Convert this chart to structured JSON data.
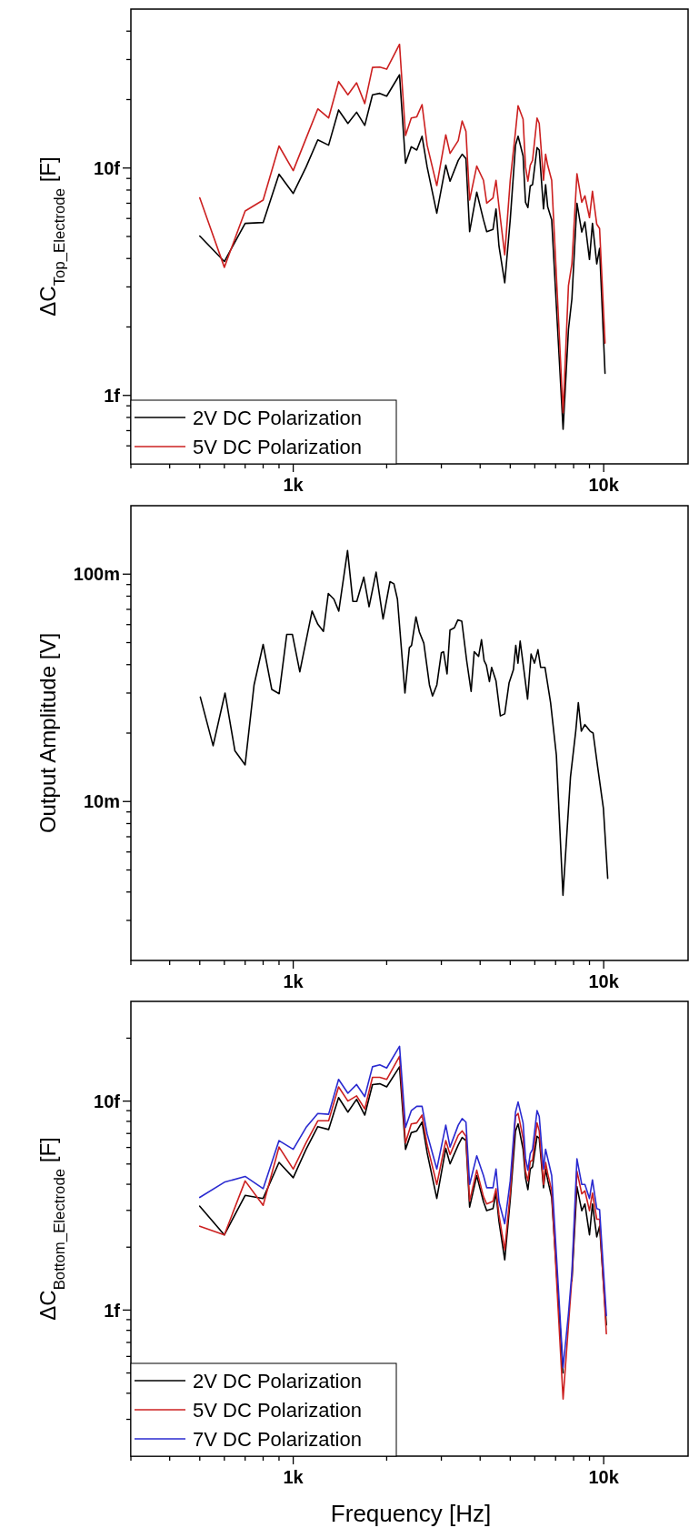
{
  "chart_data": [
    {
      "type": "line",
      "ylabel": "ΔC$_{Top_Electrode}$ [F]",
      "log": "xy",
      "legend": "bottom left",
      "xlim": [
        300,
        18700
      ],
      "ylim": [
        0.5,
        50
      ],
      "xticks": [
        {
          "value": 300,
          "label": null
        },
        {
          "value": 400,
          "label": null
        },
        {
          "value": 500,
          "label": null
        },
        {
          "value": 600,
          "label": null
        },
        {
          "value": 700,
          "label": null
        },
        {
          "value": 800,
          "label": null
        },
        {
          "value": 900,
          "label": null
        },
        {
          "value": 1000,
          "label": "1k"
        },
        {
          "value": 2000,
          "label": null
        },
        {
          "value": 3000,
          "label": null
        },
        {
          "value": 4000,
          "label": null
        },
        {
          "value": 5000,
          "label": null
        },
        {
          "value": 6000,
          "label": null
        },
        {
          "value": 7000,
          "label": null
        },
        {
          "value": 8000,
          "label": null
        },
        {
          "value": 9000,
          "label": null
        },
        {
          "value": 10000,
          "label": "10k"
        }
      ],
      "yticks": [
        {
          "value": 0.6,
          "label": null
        },
        {
          "value": 0.7,
          "label": null
        },
        {
          "value": 0.8,
          "label": null
        },
        {
          "value": 0.9,
          "label": null
        },
        {
          "value": 1,
          "label": "1f"
        },
        {
          "value": 2,
          "label": null
        },
        {
          "value": 3,
          "label": null
        },
        {
          "value": 4,
          "label": null
        },
        {
          "value": 5,
          "label": null
        },
        {
          "value": 6,
          "label": null
        },
        {
          "value": 7,
          "label": null
        },
        {
          "value": 8,
          "label": null
        },
        {
          "value": 9,
          "label": null
        },
        {
          "value": 10,
          "label": "10f"
        },
        {
          "value": 20,
          "label": null
        },
        {
          "value": 30,
          "label": null
        },
        {
          "value": 40,
          "label": null
        }
      ],
      "x": [
        500,
        600,
        700,
        800,
        900,
        1000,
        1100,
        1200,
        1300,
        1400,
        1500,
        1600,
        1700,
        1800,
        1900,
        2000,
        2200,
        2300,
        2400,
        2500,
        2600,
        2700,
        2900,
        3100,
        3200,
        3400,
        3500,
        3600,
        3700,
        3900,
        4100,
        4200,
        4400,
        4500,
        4600,
        4800,
        5000,
        5200,
        5300,
        5500,
        5600,
        5700,
        5800,
        5900,
        6100,
        6200,
        6400,
        6500,
        6600,
        6800,
        7400,
        7700,
        7900,
        8200,
        8500,
        8700,
        9000,
        9200,
        9500,
        9700,
        10100
      ],
      "series": [
        {
          "name": "2V DC Polarization",
          "color": "#000000",
          "values": [
            5.02,
            3.88,
            5.71,
            5.76,
            9.4,
            7.73,
            10.1,
            13.3,
            12.6,
            18.0,
            15.7,
            17.6,
            15.4,
            21.0,
            21.3,
            20.7,
            25.7,
            10.5,
            12.4,
            12.0,
            13.8,
            10.1,
            6.33,
            10.3,
            8.75,
            10.8,
            11.5,
            11.0,
            5.25,
            7.83,
            5.92,
            5.25,
            5.37,
            6.61,
            4.53,
            3.13,
            5.92,
            12.6,
            13.8,
            11.3,
            7.07,
            6.7,
            8.34,
            8.45,
            12.3,
            12.0,
            6.61,
            8.45,
            6.76,
            5.92,
            0.71,
            1.95,
            2.66,
            7.0,
            5.23,
            5.79,
            3.96,
            5.71,
            3.79,
            4.43,
            1.25
          ]
        },
        {
          "name": "5V DC Polarization",
          "color": "#cc2020",
          "values": [
            7.39,
            3.66,
            6.47,
            7.23,
            12.5,
            9.74,
            13.5,
            18.2,
            16.6,
            24.0,
            21.0,
            23.7,
            19.2,
            27.7,
            27.8,
            27.2,
            35.0,
            13.9,
            16.6,
            16.8,
            19.0,
            12.6,
            8.37,
            14.0,
            11.6,
            13.2,
            16.1,
            14.5,
            7.23,
            10.2,
            8.83,
            7.0,
            7.39,
            8.83,
            6.76,
            4.15,
            8.83,
            14.5,
            18.8,
            16.4,
            10.1,
            8.75,
            10.3,
            10.8,
            16.6,
            15.7,
            8.83,
            11.5,
            10.3,
            8.83,
            0.84,
            3.04,
            3.79,
            9.44,
            7.07,
            7.55,
            6.05,
            7.9,
            5.66,
            5.42,
            1.7
          ]
        }
      ]
    },
    {
      "type": "line",
      "ylabel": "Output Amplitude [V]",
      "log": "xy",
      "xlim": [
        300,
        18700
      ],
      "ylim": [
        2,
        200
      ],
      "xticks": [
        {
          "value": 300,
          "label": null
        },
        {
          "value": 400,
          "label": null
        },
        {
          "value": 500,
          "label": null
        },
        {
          "value": 600,
          "label": null
        },
        {
          "value": 700,
          "label": null
        },
        {
          "value": 800,
          "label": null
        },
        {
          "value": 900,
          "label": null
        },
        {
          "value": 1000,
          "label": "1k"
        },
        {
          "value": 2000,
          "label": null
        },
        {
          "value": 3000,
          "label": null
        },
        {
          "value": 4000,
          "label": null
        },
        {
          "value": 5000,
          "label": null
        },
        {
          "value": 6000,
          "label": null
        },
        {
          "value": 7000,
          "label": null
        },
        {
          "value": 8000,
          "label": null
        },
        {
          "value": 9000,
          "label": null
        },
        {
          "value": 10000,
          "label": "10k"
        }
      ],
      "yticks": [
        {
          "value": 3,
          "label": null
        },
        {
          "value": 4,
          "label": null
        },
        {
          "value": 5,
          "label": null
        },
        {
          "value": 6,
          "label": null
        },
        {
          "value": 7,
          "label": null
        },
        {
          "value": 8,
          "label": null
        },
        {
          "value": 9,
          "label": null
        },
        {
          "value": 10,
          "label": "10m"
        },
        {
          "value": 20,
          "label": null
        },
        {
          "value": 30,
          "label": null
        },
        {
          "value": 40,
          "label": null
        },
        {
          "value": 50,
          "label": null
        },
        {
          "value": 60,
          "label": null
        },
        {
          "value": 70,
          "label": null
        },
        {
          "value": 80,
          "label": null
        },
        {
          "value": 90,
          "label": null
        },
        {
          "value": 100,
          "label": "100m"
        }
      ],
      "x": [
        502,
        552,
        603,
        649,
        700,
        748,
        800,
        853,
        901,
        953,
        994,
        1050,
        1150,
        1200,
        1251,
        1297,
        1352,
        1402,
        1496,
        1556,
        1602,
        1688,
        1755,
        1849,
        1947,
        2050,
        2110,
        2166,
        2290,
        2366,
        2405,
        2485,
        2549,
        2634,
        2746,
        2810,
        2902,
        3000,
        3050,
        3129,
        3199,
        3304,
        3390,
        3491,
        3620,
        3741,
        3828,
        3955,
        4040,
        4120,
        4189,
        4285,
        4355,
        4498,
        4647,
        4800,
        4958,
        5120,
        5210,
        5295,
        5382,
        5520,
        5686,
        5836,
        5986,
        6141,
        6266,
        6471,
        6745,
        7040,
        7393,
        7816,
        8128,
        8285,
        8472,
        8697,
        9036,
        9245,
        9554,
        9977,
        10303
      ],
      "series": [
        {
          "color": "#000000",
          "values": [
            28.8,
            17.6,
            30.0,
            16.7,
            14.5,
            32.6,
            49.1,
            31.1,
            29.8,
            54.3,
            54.3,
            37.2,
            68.8,
            60.2,
            56.0,
            82.2,
            77.6,
            68.8,
            127,
            75.9,
            75.9,
            97,
            71.9,
            102,
            63.5,
            92.7,
            90.7,
            77.6,
            30.0,
            47.5,
            48.6,
            64.9,
            55.6,
            49.7,
            32.6,
            29.1,
            32.6,
            45.1,
            45.6,
            36.4,
            56.8,
            58.1,
            62.9,
            62.1,
            41.6,
            30.5,
            45.6,
            43.5,
            51.5,
            41.6,
            39.8,
            33.7,
            38.9,
            34.0,
            23.8,
            24.3,
            33.3,
            38.0,
            48.6,
            40.6,
            50.8,
            38.9,
            28.2,
            44.5,
            40.6,
            46.5,
            38.9,
            38.9,
            27.2,
            16.0,
            3.87,
            12.8,
            20.4,
            27.2,
            20.4,
            21.8,
            20.4,
            20.0,
            14.3,
            9.35,
            4.59
          ]
        }
      ]
    },
    {
      "type": "line",
      "ylabel": "ΔC$_{Bottom_Electrode}$ [F]",
      "xlabel": "Frequency [Hz]",
      "log": "xy",
      "legend": "bottom left",
      "xlim": [
        300,
        18700
      ],
      "ylim": [
        0.2,
        30
      ],
      "xticks": [
        {
          "value": 300,
          "label": null
        },
        {
          "value": 400,
          "label": null
        },
        {
          "value": 500,
          "label": null
        },
        {
          "value": 600,
          "label": null
        },
        {
          "value": 700,
          "label": null
        },
        {
          "value": 800,
          "label": null
        },
        {
          "value": 900,
          "label": null
        },
        {
          "value": 1000,
          "label": "1k"
        },
        {
          "value": 2000,
          "label": null
        },
        {
          "value": 3000,
          "label": null
        },
        {
          "value": 4000,
          "label": null
        },
        {
          "value": 5000,
          "label": null
        },
        {
          "value": 6000,
          "label": null
        },
        {
          "value": 7000,
          "label": null
        },
        {
          "value": 8000,
          "label": null
        },
        {
          "value": 9000,
          "label": null
        },
        {
          "value": 10000,
          "label": "10k"
        }
      ],
      "yticks": [
        {
          "value": 0.3,
          "label": null
        },
        {
          "value": 0.4,
          "label": null
        },
        {
          "value": 0.5,
          "label": null
        },
        {
          "value": 0.6,
          "label": null
        },
        {
          "value": 0.7,
          "label": null
        },
        {
          "value": 0.8,
          "label": null
        },
        {
          "value": 0.9,
          "label": null
        },
        {
          "value": 1,
          "label": "1f"
        },
        {
          "value": 2,
          "label": null
        },
        {
          "value": 3,
          "label": null
        },
        {
          "value": 4,
          "label": null
        },
        {
          "value": 5,
          "label": null
        },
        {
          "value": 6,
          "label": null
        },
        {
          "value": 7,
          "label": null
        },
        {
          "value": 8,
          "label": null
        },
        {
          "value": 9,
          "label": null
        },
        {
          "value": 10,
          "label": "10f"
        },
        {
          "value": 20,
          "label": null
        }
      ],
      "x": [
        500,
        600,
        700,
        800,
        900,
        1000,
        1100,
        1200,
        1300,
        1400,
        1500,
        1600,
        1700,
        1800,
        1900,
        2000,
        2200,
        2300,
        2400,
        2500,
        2600,
        2700,
        2900,
        3100,
        3200,
        3400,
        3500,
        3600,
        3700,
        3900,
        4100,
        4200,
        4400,
        4500,
        4600,
        4800,
        5000,
        5200,
        5300,
        5500,
        5600,
        5700,
        5800,
        5900,
        6100,
        6200,
        6400,
        6500,
        6600,
        6800,
        7400,
        7700,
        7900,
        8200,
        8500,
        8700,
        9000,
        9200,
        9500,
        9700,
        10200
      ],
      "series": [
        {
          "name": "2V DC Polarization",
          "color": "#000000",
          "values": [
            3.14,
            2.29,
            3.54,
            3.42,
            5.09,
            4.3,
            5.88,
            7.55,
            7.31,
            10.4,
            8.86,
            10.2,
            8.57,
            12.0,
            12.1,
            11.7,
            14.6,
            5.88,
            7.06,
            7.2,
            7.93,
            5.66,
            3.42,
            5.94,
            5.01,
            6.17,
            6.7,
            6.47,
            3.11,
            4.4,
            3.3,
            2.99,
            3.06,
            3.63,
            2.65,
            1.74,
            3.37,
            7.2,
            7.78,
            5.88,
            4.3,
            3.77,
            4.73,
            4.85,
            6.79,
            6.64,
            3.85,
            4.73,
            4.2,
            3.46,
            0.5,
            null,
            1.38,
            3.9,
            2.99,
            3.22,
            2.29,
            3.22,
            2.24,
            2.52,
            0.85
          ]
        },
        {
          "name": "5V DC Polarization",
          "color": "#cc2020",
          "values": [
            2.52,
            2.29,
            4.15,
            3.17,
            6.03,
            4.73,
            6.32,
            8.05,
            8.05,
            11.7,
            10,
            10.6,
            9.17,
            13.0,
            13.0,
            12.7,
            16.4,
            6.32,
            7.78,
            7.86,
            8.57,
            6.17,
            3.99,
            6.47,
            5.55,
            6.86,
            7.2,
            6.79,
            3.32,
            4.67,
            3.49,
            3.22,
            3.32,
            3.81,
            2.85,
            1.94,
            3.63,
            8.45,
            8.73,
            6.64,
            4.62,
            4.15,
            5.14,
            5.21,
            7.86,
            7.2,
            3.99,
            5.09,
            4.51,
            3.72,
            0.375,
            0.85,
            1.42,
            4.62,
            3.6,
            3.72,
            2.99,
            3.63,
            2.72,
            2.72,
            0.77
          ]
        },
        {
          "name": "7V DC Polarization",
          "color": "#2a2ad0",
          "values": [
            3.46,
            4.09,
            4.36,
            3.81,
            6.47,
            5.88,
            7.48,
            8.73,
            8.65,
            12.7,
            10.9,
            12.0,
            10.5,
            14.6,
            14.9,
            14.4,
            18.3,
            7.48,
            9.0,
            9.44,
            9.44,
            6.97,
            4.73,
            7.67,
            6.03,
            7.67,
            8.25,
            7.93,
            3.99,
            5.47,
            4.4,
            3.85,
            3.85,
            4.73,
            3.3,
            2.59,
            4.15,
            8.86,
            9.9,
            7.86,
            5.33,
            4.67,
            5.6,
            5.88,
            9.0,
            8.45,
            4.73,
            5.88,
            5.33,
            4.4,
            0.53,
            0.96,
            1.52,
            5.29,
            3.99,
            3.99,
            3.42,
            4.2,
            3.06,
            3.02,
            0.94
          ]
        }
      ]
    }
  ]
}
